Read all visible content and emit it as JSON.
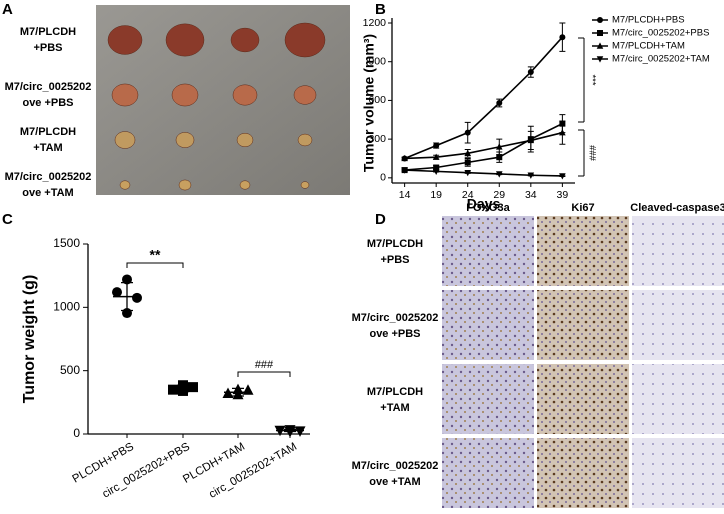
{
  "panel_letters": [
    "A",
    "B",
    "C",
    "D"
  ],
  "panel_a": {
    "row_labels": [
      [
        "M7/PLCDH",
        "+PBS"
      ],
      [
        "M7/circ_0025202",
        "ove +PBS"
      ],
      [
        "M7/PLCDH",
        "+TAM"
      ],
      [
        "M7/circ_0025202",
        "ove +TAM"
      ]
    ]
  },
  "panel_d": {
    "column_headers": [
      "FOXO3a",
      "Ki67",
      "Cleaved-caspase3"
    ],
    "row_labels": [
      [
        "M7/PLCDH",
        "+PBS"
      ],
      [
        "M7/circ_0025202",
        "ove +PBS"
      ],
      [
        "M7/PLCDH",
        "+TAM"
      ],
      [
        "M7/circ_0025202",
        "ove +TAM"
      ]
    ]
  },
  "chart_data": [
    {
      "type": "line",
      "x_label": "Days",
      "y_label": "Tumor volume (mm³)",
      "x": [
        14,
        19,
        24,
        29,
        34,
        39
      ],
      "xlim": [
        12,
        41
      ],
      "xticks": [
        14,
        19,
        24,
        29,
        34,
        39
      ],
      "ylim": [
        -40,
        1200
      ],
      "yticks": [
        0,
        300,
        600,
        900,
        1200
      ],
      "annotations": [
        "***",
        "###"
      ],
      "series": [
        {
          "name": "M7/PLCDH+PBS",
          "color": "#000000",
          "marker": "circle",
          "values": [
            150,
            250,
            350,
            580,
            820,
            1090
          ],
          "errors": [
            10,
            20,
            80,
            30,
            40,
            110
          ]
        },
        {
          "name": "M7/circ_0025202+PBS",
          "color": "#000000",
          "marker": "square",
          "values": [
            60,
            80,
            120,
            160,
            300,
            420
          ],
          "errors": [
            10,
            15,
            30,
            40,
            100,
            70
          ]
        },
        {
          "name": "M7/PLCDH+TAM",
          "color": "#000000",
          "marker": "triangle",
          "values": [
            150,
            160,
            190,
            240,
            290,
            350
          ],
          "errors": [
            10,
            15,
            30,
            60,
            70,
            90
          ]
        },
        {
          "name": "M7/circ_0025202+TAM",
          "color": "#000000",
          "marker": "down-triangle",
          "values": [
            60,
            50,
            40,
            30,
            20,
            15
          ],
          "errors": [
            5,
            5,
            5,
            5,
            5,
            5
          ]
        }
      ]
    },
    {
      "type": "scatter",
      "y_label": "Tumor weight (g)",
      "ylim": [
        0,
        1500
      ],
      "yticks": [
        0,
        500,
        1000,
        1500
      ],
      "categories": [
        "PLCDH+PBS",
        "circ_0025202+PBS",
        "PLCDH+TAM",
        "circ_0025202+TAM"
      ],
      "annotations": [
        "**",
        "###"
      ],
      "groups": [
        {
          "marker": "circle",
          "values": [
            1220,
            1120,
            1075,
            955
          ],
          "mean": 1085,
          "sd": 110
        },
        {
          "marker": "square",
          "values": [
            385,
            350,
            370,
            340
          ],
          "mean": 360,
          "sd": 25
        },
        {
          "marker": "triangle",
          "values": [
            350,
            320,
            345,
            310
          ],
          "mean": 330,
          "sd": 30
        },
        {
          "marker": "down-triangle",
          "values": [
            20,
            30,
            25,
            35
          ],
          "mean": 28,
          "sd": 8
        }
      ]
    }
  ]
}
